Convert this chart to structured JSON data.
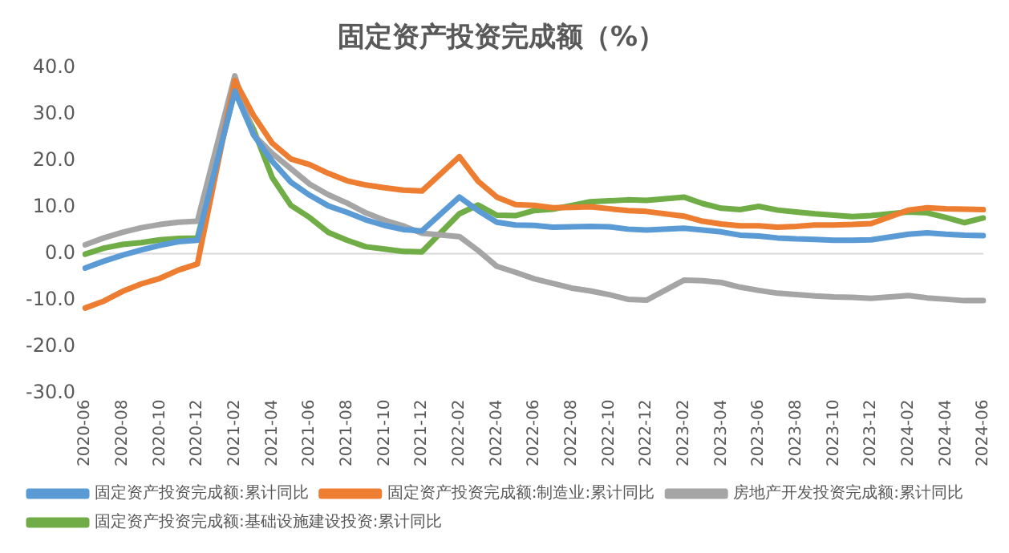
{
  "chart_data": {
    "type": "line",
    "title": "固定资产投资完成额（%）",
    "categories": [
      "2020-06",
      null,
      "2020-08",
      null,
      "2020-10",
      null,
      "2020-12",
      null,
      "2021-02",
      null,
      "2021-04",
      null,
      "2021-06",
      null,
      "2021-08",
      null,
      "2021-10",
      null,
      "2021-12",
      null,
      "2022-02",
      null,
      "2022-04",
      null,
      "2022-06",
      null,
      "2022-08",
      null,
      "2022-10",
      null,
      "2022-12",
      null,
      "2023-02",
      null,
      "2023-04",
      null,
      "2023-06",
      null,
      "2023-08",
      null,
      "2023-10",
      null,
      "2023-12",
      null,
      "2024-02",
      null,
      "2024-04",
      null,
      "2024-06"
    ],
    "series": [
      {
        "name": "固定资产投资完成额:累计同比",
        "color": "#5b9bd5",
        "values": [
          -3.1,
          -1.6,
          -0.3,
          0.8,
          1.8,
          2.6,
          2.9,
          null,
          35.0,
          25.6,
          19.9,
          15.4,
          12.6,
          10.3,
          8.9,
          7.3,
          6.1,
          5.2,
          4.9,
          null,
          12.2,
          9.3,
          6.8,
          6.2,
          6.1,
          5.7,
          5.8,
          5.9,
          5.8,
          5.3,
          5.1,
          null,
          5.5,
          5.1,
          4.7,
          4.0,
          3.8,
          3.4,
          3.2,
          3.1,
          2.9,
          2.9,
          3.0,
          null,
          4.2,
          4.5,
          4.2,
          4.0,
          3.9
        ]
      },
      {
        "name": "固定资产投资完成额:制造业:累计同比",
        "color": "#ed7d31",
        "values": [
          -11.7,
          -10.2,
          -8.1,
          -6.5,
          -5.3,
          -3.5,
          -2.2,
          null,
          37.3,
          29.8,
          23.8,
          20.4,
          19.2,
          17.3,
          15.7,
          14.8,
          14.2,
          13.7,
          13.5,
          null,
          20.9,
          15.6,
          12.2,
          10.6,
          10.4,
          9.9,
          10.0,
          10.1,
          9.7,
          9.3,
          9.1,
          null,
          8.1,
          7.0,
          6.4,
          6.0,
          6.0,
          5.7,
          5.9,
          6.2,
          6.2,
          6.3,
          6.5,
          null,
          9.4,
          9.9,
          9.7,
          9.6,
          9.5
        ]
      },
      {
        "name": "房地产开发投资完成额:累计同比",
        "color": "#a5a5a5",
        "values": [
          1.9,
          3.4,
          4.6,
          5.6,
          6.3,
          6.8,
          7.0,
          null,
          38.3,
          25.6,
          21.6,
          18.3,
          15.0,
          12.7,
          10.9,
          8.8,
          7.2,
          6.0,
          4.4,
          null,
          3.7,
          0.7,
          -2.7,
          -4.0,
          -5.4,
          -6.4,
          -7.4,
          -8.0,
          -8.8,
          -9.8,
          -10.0,
          null,
          -5.7,
          -5.8,
          -6.2,
          -7.2,
          -7.9,
          -8.5,
          -8.8,
          -9.1,
          -9.3,
          -9.4,
          -9.6,
          null,
          -9.0,
          -9.5,
          -9.8,
          -10.1,
          -10.1
        ]
      },
      {
        "name": "固定资产投资完成额:基础设施建设投资:累计同比",
        "color": "#70ad47",
        "values": [
          -0.1,
          1.2,
          2.0,
          2.4,
          3.0,
          3.3,
          3.4,
          null,
          35.0,
          26.8,
          16.4,
          10.4,
          7.8,
          4.6,
          2.9,
          1.5,
          1.0,
          0.5,
          0.4,
          null,
          8.6,
          10.5,
          8.3,
          8.2,
          9.3,
          9.6,
          10.4,
          11.2,
          11.4,
          11.6,
          11.5,
          null,
          12.2,
          10.8,
          9.8,
          9.5,
          10.2,
          9.4,
          9.0,
          8.6,
          8.3,
          8.0,
          8.2,
          null,
          9.0,
          8.8,
          7.8,
          6.7,
          7.7
        ]
      }
    ],
    "ylim": [
      -30,
      40
    ],
    "yticks": [
      {
        "value": -30,
        "label": "-30.0"
      },
      {
        "value": -20,
        "label": "-20.0"
      },
      {
        "value": -10,
        "label": "-10.0"
      },
      {
        "value": 0,
        "label": "0.0"
      },
      {
        "value": 10,
        "label": "10.0"
      },
      {
        "value": 20,
        "label": "20.0"
      },
      {
        "value": 30,
        "label": "30.0"
      },
      {
        "value": 40,
        "label": "40.0"
      }
    ],
    "ref_lines": [
      {
        "axis": "y",
        "value": 0,
        "color": "#d9d9d9"
      }
    ],
    "grid": false,
    "legend": "bottom",
    "marker": "none",
    "line_style": "solid"
  }
}
